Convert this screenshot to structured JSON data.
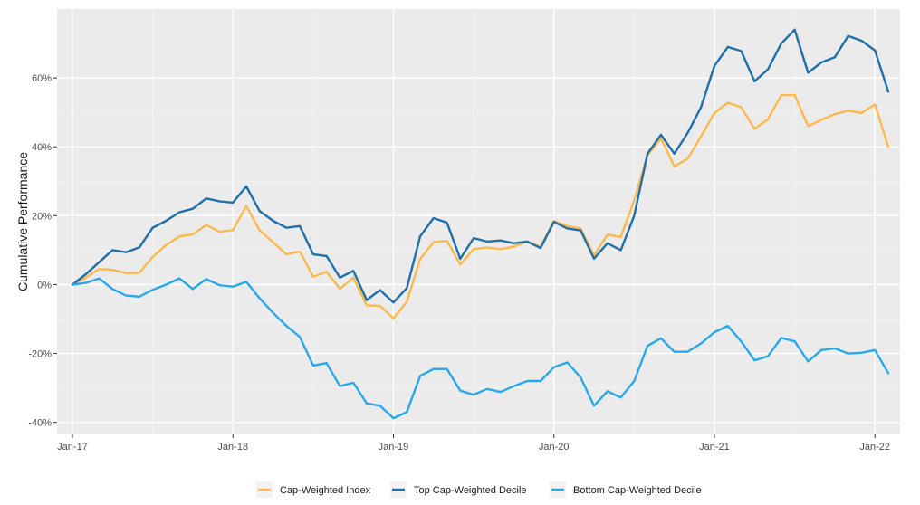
{
  "chart_data": {
    "type": "line",
    "ylabel": "Cumulative Performance",
    "xlabel": "",
    "ylim": [
      -0.435,
      0.8
    ],
    "x_start": "2017-01",
    "x_end": "2022-02",
    "x_ticks": [
      {
        "label": "Jan-17",
        "date": "2017-01"
      },
      {
        "label": "Jan-18",
        "date": "2018-01"
      },
      {
        "label": "Jan-19",
        "date": "2019-01"
      },
      {
        "label": "Jan-20",
        "date": "2020-01"
      },
      {
        "label": "Jan-21",
        "date": "2021-01"
      },
      {
        "label": "Jan-22",
        "date": "2022-01"
      }
    ],
    "y_ticks": [
      {
        "label": "-40%",
        "value": -0.4
      },
      {
        "label": "-20%",
        "value": -0.2
      },
      {
        "label": "0%",
        "value": 0.0
      },
      {
        "label": "20%",
        "value": 0.2
      },
      {
        "label": "40%",
        "value": 0.4
      },
      {
        "label": "60%",
        "value": 0.6
      }
    ],
    "grid": true,
    "background_color": "#ebebeb",
    "legend_position": "bottom",
    "x": [
      "2017-01",
      "2017-02",
      "2017-03",
      "2017-04",
      "2017-05",
      "2017-06",
      "2017-07",
      "2017-08",
      "2017-09",
      "2017-10",
      "2017-11",
      "2017-12",
      "2018-01",
      "2018-02",
      "2018-03",
      "2018-04",
      "2018-05",
      "2018-06",
      "2018-07",
      "2018-08",
      "2018-09",
      "2018-10",
      "2018-11",
      "2018-12",
      "2019-01",
      "2019-02",
      "2019-03",
      "2019-04",
      "2019-05",
      "2019-06",
      "2019-07",
      "2019-08",
      "2019-09",
      "2019-10",
      "2019-11",
      "2019-12",
      "2020-01",
      "2020-02",
      "2020-03",
      "2020-04",
      "2020-05",
      "2020-06",
      "2020-07",
      "2020-08",
      "2020-09",
      "2020-10",
      "2020-11",
      "2020-12",
      "2021-01",
      "2021-02",
      "2021-03",
      "2021-04",
      "2021-05",
      "2021-06",
      "2021-07",
      "2021-08",
      "2021-09",
      "2021-10",
      "2021-11",
      "2021-12",
      "2022-01",
      "2022-02"
    ],
    "series": [
      {
        "name": "Cap-Weighted Index",
        "color": "#fdb94e",
        "values": [
          0.0,
          0.02,
          0.045,
          0.043,
          0.033,
          0.034,
          0.08,
          0.115,
          0.14,
          0.146,
          0.173,
          0.153,
          0.158,
          0.228,
          0.157,
          0.123,
          0.088,
          0.096,
          0.023,
          0.037,
          -0.012,
          0.02,
          -0.06,
          -0.062,
          -0.098,
          -0.05,
          0.074,
          0.123,
          0.127,
          0.058,
          0.103,
          0.108,
          0.103,
          0.11,
          0.125,
          0.11,
          0.185,
          0.17,
          0.163,
          0.085,
          0.145,
          0.138,
          0.245,
          0.376,
          0.424,
          0.343,
          0.365,
          0.43,
          0.498,
          0.528,
          0.515,
          0.452,
          0.48,
          0.55,
          0.55,
          0.46,
          0.478,
          0.495,
          0.505,
          0.498,
          0.523,
          0.4
        ]
      },
      {
        "name": "Top Cap-Weighted Decile",
        "color": "#1f6fa8",
        "values": [
          0.0,
          0.03,
          0.065,
          0.1,
          0.094,
          0.108,
          0.165,
          0.185,
          0.21,
          0.22,
          0.25,
          0.242,
          0.238,
          0.285,
          0.213,
          0.185,
          0.165,
          0.17,
          0.088,
          0.083,
          0.02,
          0.04,
          -0.045,
          -0.016,
          -0.052,
          -0.01,
          0.14,
          0.193,
          0.18,
          0.075,
          0.135,
          0.125,
          0.128,
          0.12,
          0.125,
          0.106,
          0.182,
          0.163,
          0.157,
          0.075,
          0.12,
          0.1,
          0.2,
          0.38,
          0.435,
          0.38,
          0.44,
          0.515,
          0.635,
          0.69,
          0.678,
          0.59,
          0.625,
          0.7,
          0.74,
          0.615,
          0.645,
          0.66,
          0.722,
          0.708,
          0.68,
          0.56
        ]
      },
      {
        "name": "Bottom Cap-Weighted Decile",
        "color": "#29a8e8",
        "values": [
          0.0,
          0.005,
          0.018,
          -0.013,
          -0.032,
          -0.035,
          -0.015,
          0.0,
          0.018,
          -0.013,
          0.016,
          -0.002,
          -0.006,
          0.008,
          -0.04,
          -0.082,
          -0.12,
          -0.152,
          -0.235,
          -0.228,
          -0.295,
          -0.285,
          -0.345,
          -0.352,
          -0.388,
          -0.37,
          -0.265,
          -0.245,
          -0.245,
          -0.308,
          -0.32,
          -0.303,
          -0.312,
          -0.295,
          -0.28,
          -0.28,
          -0.24,
          -0.226,
          -0.27,
          -0.352,
          -0.31,
          -0.328,
          -0.28,
          -0.178,
          -0.156,
          -0.195,
          -0.195,
          -0.171,
          -0.138,
          -0.12,
          -0.165,
          -0.22,
          -0.208,
          -0.155,
          -0.165,
          -0.223,
          -0.19,
          -0.185,
          -0.2,
          -0.198,
          -0.19,
          -0.257
        ]
      }
    ]
  }
}
